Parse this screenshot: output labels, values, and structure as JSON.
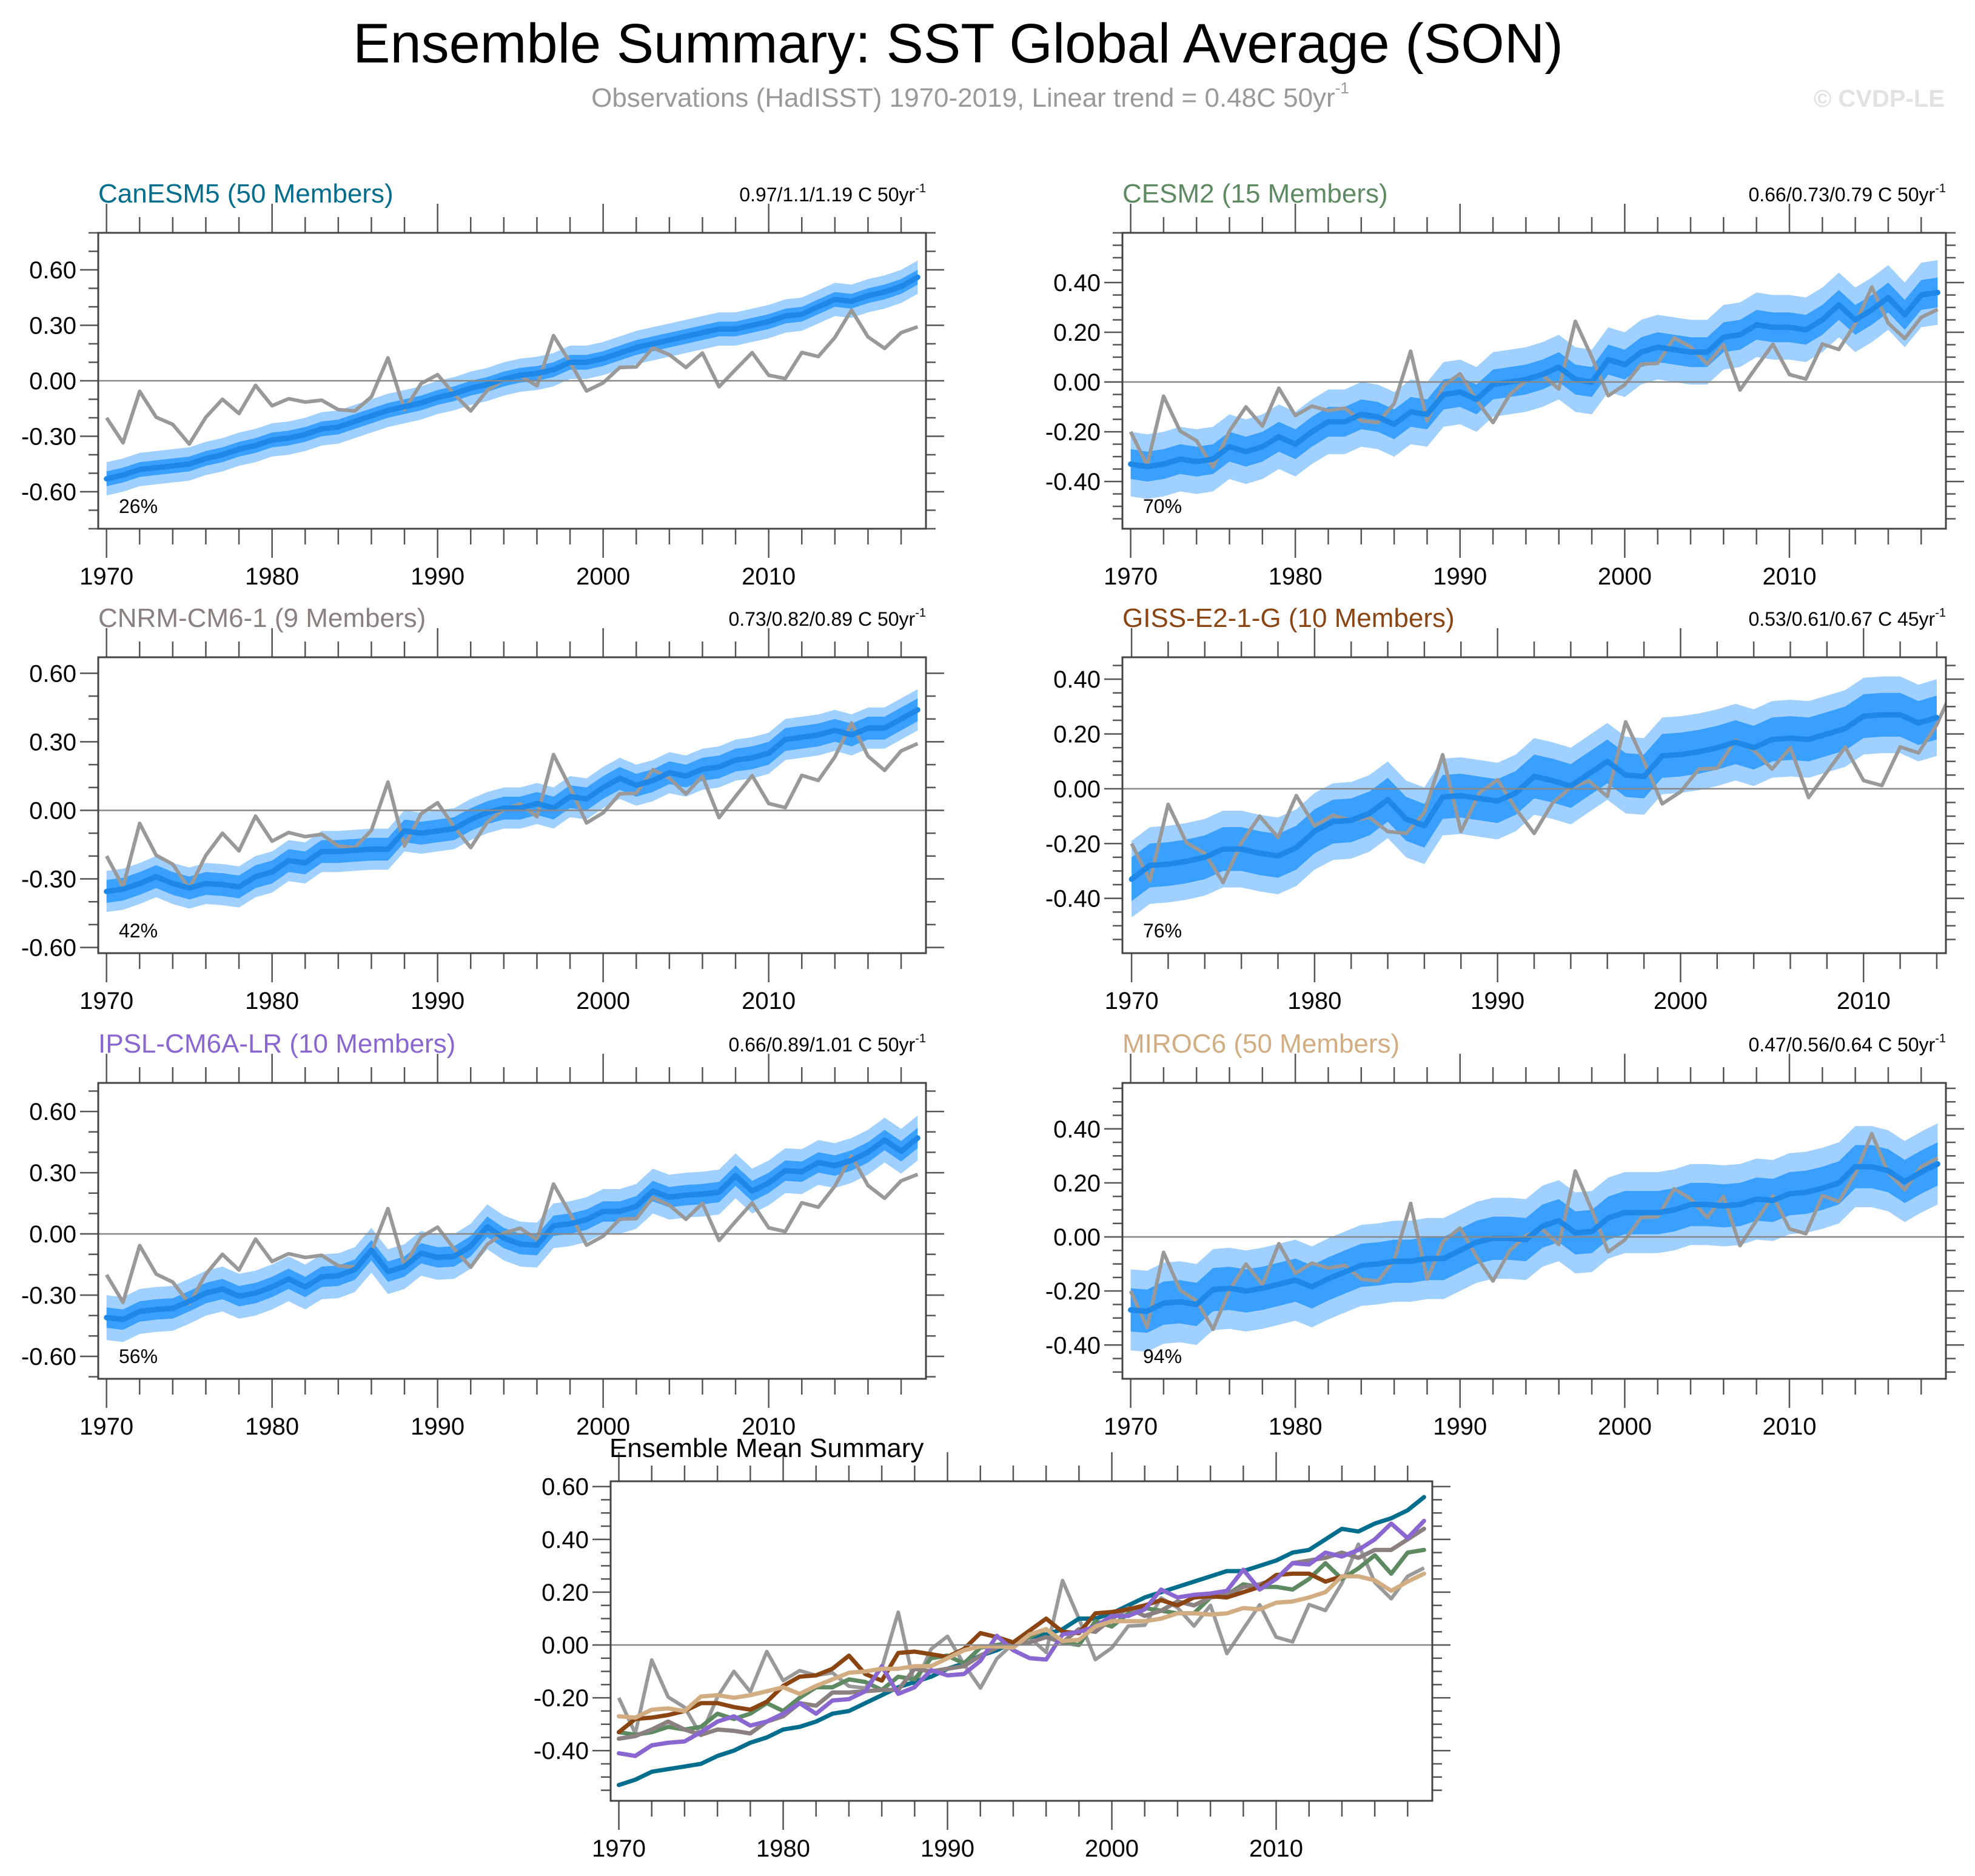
{
  "title": "Ensemble Summary: SST Global Average (SON)",
  "subtitle": {
    "text": "Observations (HadISST) 1970-2019, Linear trend = 0.48C 50yr",
    "sup": "-1"
  },
  "watermark": "© CVDP-LE",
  "colors": {
    "outer_band": "#a0d0ff",
    "inner_band": "#3aa0ff",
    "ensemble_mean": "#1e88e8",
    "observations": "#999999",
    "zero_line": "#888888"
  },
  "observations": {
    "x_start": 1970,
    "values": [
      -0.2,
      -0.335,
      -0.057,
      -0.197,
      -0.236,
      -0.342,
      -0.197,
      -0.1,
      -0.177,
      -0.025,
      -0.135,
      -0.097,
      -0.115,
      -0.105,
      -0.156,
      -0.163,
      -0.087,
      0.124,
      -0.156,
      -0.015,
      0.033,
      -0.073,
      -0.163,
      -0.052,
      0.005,
      0.028,
      -0.028,
      0.244,
      0.1,
      -0.055,
      -0.011,
      0.072,
      0.075,
      0.178,
      0.141,
      0.072,
      0.15,
      -0.032,
      0.061,
      0.152,
      0.03,
      0.012,
      0.153,
      0.131,
      0.234,
      0.382,
      0.237,
      0.175,
      0.26,
      0.292
    ]
  },
  "chart_data": [
    {
      "type": "area",
      "model": "CanESM5",
      "title": "CanESM5 (50 Members)",
      "color": "#006e8c",
      "trend": "0.97/1.1/1.19 C 50yr",
      "trend_sup": "-1",
      "percent": "26%",
      "x_start": 1970,
      "xlim": [
        1969.5,
        2019.5
      ],
      "xticks": [
        1970,
        1980,
        1990,
        2000,
        2010
      ],
      "xtick_labels": [
        "1970",
        "1980",
        "1990",
        "2000",
        "2010"
      ],
      "ylim": [
        -0.8,
        0.8
      ],
      "yticks": [
        -0.6,
        -0.3,
        0,
        0.3,
        0.6
      ],
      "ytick_labels": [
        "-0.60",
        "-0.30",
        "0.00",
        "0.30",
        "0.60"
      ],
      "ytick_minor_step": 0.1,
      "inner_halfwidth": 0.04,
      "outer_halfwidth": 0.09,
      "ensemble_mean": [
        -0.53,
        -0.51,
        -0.48,
        -0.47,
        -0.46,
        -0.45,
        -0.42,
        -0.4,
        -0.37,
        -0.35,
        -0.32,
        -0.31,
        -0.29,
        -0.26,
        -0.25,
        -0.22,
        -0.19,
        -0.16,
        -0.14,
        -0.12,
        -0.09,
        -0.07,
        -0.04,
        -0.02,
        0.01,
        0.03,
        0.04,
        0.06,
        0.1,
        0.1,
        0.12,
        0.15,
        0.18,
        0.2,
        0.22,
        0.24,
        0.26,
        0.28,
        0.28,
        0.3,
        0.32,
        0.35,
        0.36,
        0.4,
        0.44,
        0.43,
        0.46,
        0.48,
        0.51,
        0.56
      ]
    },
    {
      "type": "area",
      "model": "CESM2",
      "title": "CESM2 (15 Members)",
      "color": "#5e8a62",
      "trend": "0.66/0.73/0.79 C 50yr",
      "trend_sup": "-1",
      "percent": "70%",
      "x_start": 1970,
      "xlim": [
        1969.5,
        2019.5
      ],
      "xticks": [
        1970,
        1980,
        1990,
        2000,
        2010
      ],
      "xtick_labels": [
        "1970",
        "1980",
        "1990",
        "2000",
        "2010"
      ],
      "ylim": [
        -0.59,
        0.6
      ],
      "yticks": [
        -0.4,
        -0.2,
        0,
        0.2,
        0.4
      ],
      "ytick_labels": [
        "-0.40",
        "-0.20",
        "0.00",
        "0.20",
        "0.40"
      ],
      "ytick_minor_step": 0.05,
      "inner_halfwidth": 0.06,
      "outer_halfwidth": 0.13,
      "ensemble_mean": [
        -0.33,
        -0.34,
        -0.33,
        -0.31,
        -0.32,
        -0.31,
        -0.26,
        -0.28,
        -0.26,
        -0.22,
        -0.25,
        -0.2,
        -0.16,
        -0.16,
        -0.13,
        -0.14,
        -0.17,
        -0.12,
        -0.13,
        -0.05,
        -0.04,
        -0.07,
        -0.01,
        0.0,
        0.01,
        0.03,
        0.06,
        0.01,
        0.0,
        0.09,
        0.07,
        0.12,
        0.14,
        0.13,
        0.12,
        0.12,
        0.18,
        0.19,
        0.23,
        0.22,
        0.22,
        0.21,
        0.25,
        0.31,
        0.25,
        0.29,
        0.34,
        0.27,
        0.35,
        0.36
      ]
    },
    {
      "type": "area",
      "model": "CNRM-CM6-1",
      "title": "CNRM-CM6-1 (9 Members)",
      "color": "#8a8080",
      "trend": "0.73/0.82/0.89 C 50yr",
      "trend_sup": "-1",
      "percent": "42%",
      "x_start": 1970,
      "xlim": [
        1969.5,
        2019.5
      ],
      "xticks": [
        1970,
        1980,
        1990,
        2000,
        2010
      ],
      "xtick_labels": [
        "1970",
        "1980",
        "1990",
        "2000",
        "2010"
      ],
      "ylim": [
        -0.625,
        0.67
      ],
      "yticks": [
        -0.6,
        -0.3,
        0,
        0.3,
        0.6
      ],
      "ytick_labels": [
        "-0.60",
        "-0.30",
        "0.00",
        "0.30",
        "0.60"
      ],
      "ytick_minor_step": 0.1,
      "inner_halfwidth": 0.05,
      "outer_halfwidth": 0.09,
      "ensemble_mean": [
        -0.355,
        -0.345,
        -0.32,
        -0.29,
        -0.32,
        -0.34,
        -0.32,
        -0.325,
        -0.335,
        -0.29,
        -0.27,
        -0.22,
        -0.23,
        -0.18,
        -0.18,
        -0.175,
        -0.17,
        -0.17,
        -0.09,
        -0.1,
        -0.09,
        -0.08,
        -0.04,
        -0.01,
        0.01,
        0.01,
        0.03,
        0.01,
        0.06,
        0.05,
        0.1,
        0.14,
        0.11,
        0.13,
        0.165,
        0.15,
        0.18,
        0.19,
        0.22,
        0.23,
        0.25,
        0.31,
        0.32,
        0.33,
        0.35,
        0.33,
        0.36,
        0.36,
        0.4,
        0.44
      ]
    },
    {
      "type": "area",
      "model": "GISS-E2-1-G",
      "title": "GISS-E2-1-G (10 Members)",
      "color": "#8b4513",
      "trend": "0.53/0.61/0.67 C 45yr",
      "trend_sup": "-1",
      "percent": "76%",
      "x_start": 1970,
      "xlim": [
        1969.5,
        2014.5
      ],
      "xticks": [
        1970,
        1980,
        1990,
        2000,
        2010
      ],
      "xtick_labels": [
        "1970",
        "1980",
        "1990",
        "2000",
        "2010"
      ],
      "ylim": [
        -0.6,
        0.48
      ],
      "yticks": [
        -0.4,
        -0.2,
        0,
        0.2,
        0.4
      ],
      "ytick_labels": [
        "-0.40",
        "-0.20",
        "0.00",
        "0.20",
        "0.40"
      ],
      "ytick_minor_step": 0.05,
      "inner_halfwidth": 0.08,
      "outer_halfwidth": 0.14,
      "ensemble_mean": [
        -0.33,
        -0.28,
        -0.275,
        -0.265,
        -0.25,
        -0.22,
        -0.22,
        -0.235,
        -0.245,
        -0.215,
        -0.155,
        -0.12,
        -0.115,
        -0.09,
        -0.04,
        -0.11,
        -0.135,
        -0.03,
        -0.025,
        -0.035,
        -0.045,
        -0.015,
        0.045,
        0.03,
        0.01,
        0.055,
        0.1,
        0.05,
        0.045,
        0.12,
        0.125,
        0.135,
        0.15,
        0.17,
        0.15,
        0.18,
        0.185,
        0.18,
        0.2,
        0.22,
        0.265,
        0.27,
        0.27,
        0.24,
        0.26
      ]
    },
    {
      "type": "area",
      "model": "IPSL-CM6A-LR",
      "title": "IPSL-CM6A-LR (10 Members)",
      "color": "#8a66d1",
      "trend": "0.66/0.89/1.01 C 50yr",
      "trend_sup": "-1",
      "percent": "56%",
      "x_start": 1970,
      "xlim": [
        1969.5,
        2019.5
      ],
      "xticks": [
        1970,
        1980,
        1990,
        2000,
        2010
      ],
      "xtick_labels": [
        "1970",
        "1980",
        "1990",
        "2000",
        "2010"
      ],
      "ylim": [
        -0.71,
        0.74
      ],
      "yticks": [
        -0.6,
        -0.3,
        0,
        0.3,
        0.6
      ],
      "ytick_labels": [
        "-0.60",
        "-0.30",
        "0.00",
        "0.30",
        "0.60"
      ],
      "ytick_minor_step": 0.1,
      "inner_halfwidth": 0.05,
      "outer_halfwidth": 0.11,
      "ensemble_mean": [
        -0.41,
        -0.42,
        -0.38,
        -0.37,
        -0.365,
        -0.33,
        -0.29,
        -0.27,
        -0.305,
        -0.29,
        -0.26,
        -0.22,
        -0.26,
        -0.21,
        -0.205,
        -0.175,
        -0.08,
        -0.185,
        -0.16,
        -0.095,
        -0.115,
        -0.11,
        -0.06,
        0.035,
        -0.02,
        -0.05,
        -0.055,
        0.04,
        0.05,
        0.07,
        0.11,
        0.11,
        0.135,
        0.21,
        0.18,
        0.19,
        0.195,
        0.205,
        0.285,
        0.21,
        0.25,
        0.31,
        0.305,
        0.35,
        0.335,
        0.36,
        0.4,
        0.46,
        0.405,
        0.47
      ]
    },
    {
      "type": "area",
      "model": "MIROC6",
      "title": "MIROC6 (50 Members)",
      "color": "#d2ad82",
      "trend": "0.47/0.56/0.64 C 50yr",
      "trend_sup": "-1",
      "percent": "94%",
      "x_start": 1970,
      "xlim": [
        1969.5,
        2019.5
      ],
      "xticks": [
        1970,
        1980,
        1990,
        2000,
        2010
      ],
      "xtick_labels": [
        "1970",
        "1980",
        "1990",
        "2000",
        "2010"
      ],
      "ylim": [
        -0.525,
        0.57
      ],
      "yticks": [
        -0.4,
        -0.2,
        0,
        0.2,
        0.4
      ],
      "ytick_labels": [
        "-0.40",
        "-0.20",
        "0.00",
        "0.20",
        "0.40"
      ],
      "ytick_minor_step": 0.05,
      "inner_halfwidth": 0.08,
      "outer_halfwidth": 0.15,
      "ensemble_mean": [
        -0.27,
        -0.275,
        -0.245,
        -0.24,
        -0.25,
        -0.195,
        -0.19,
        -0.2,
        -0.19,
        -0.175,
        -0.16,
        -0.185,
        -0.155,
        -0.13,
        -0.105,
        -0.1,
        -0.09,
        -0.09,
        -0.08,
        -0.08,
        -0.05,
        -0.02,
        -0.005,
        -0.005,
        -0.01,
        0.04,
        0.06,
        0.015,
        0.02,
        0.07,
        0.09,
        0.09,
        0.09,
        0.1,
        0.12,
        0.12,
        0.115,
        0.12,
        0.14,
        0.135,
        0.16,
        0.165,
        0.18,
        0.2,
        0.26,
        0.26,
        0.245,
        0.205,
        0.24,
        0.27
      ]
    },
    {
      "type": "line",
      "title": "Ensemble Mean Summary",
      "xlim": [
        1969.5,
        2019.5
      ],
      "xticks": [
        1970,
        1980,
        1990,
        2000,
        2010
      ],
      "xtick_labels": [
        "1970",
        "1980",
        "1990",
        "2000",
        "2010"
      ],
      "ylim": [
        -0.59,
        0.62
      ],
      "yticks": [
        -0.4,
        -0.2,
        0,
        0.2,
        0.4,
        0.6
      ],
      "ytick_labels": [
        "-0.40",
        "-0.20",
        "0.00",
        "0.20",
        "0.40",
        "0.60"
      ],
      "ytick_minor_step": 0.05,
      "series_from_panels": [
        "CanESM5",
        "CESM2",
        "CNRM-CM6-1",
        "GISS-E2-1-G",
        "IPSL-CM6A-LR",
        "MIROC6"
      ],
      "includes_observations": true
    }
  ]
}
